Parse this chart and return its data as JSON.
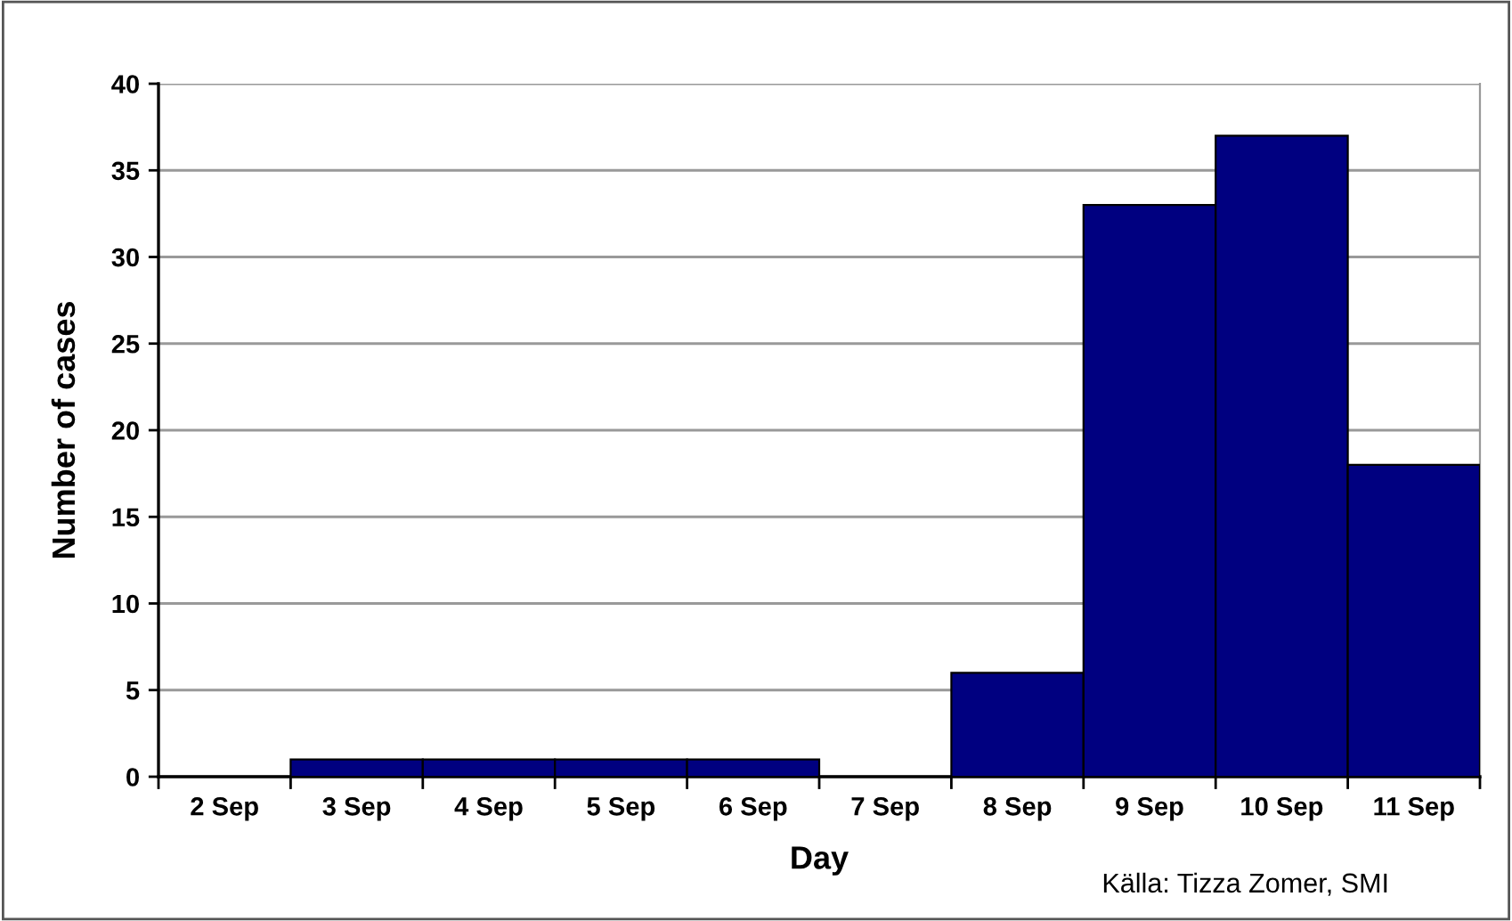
{
  "chart_data": {
    "type": "bar",
    "xlabel": "Day",
    "ylabel": "Number of cases",
    "categories": [
      "2 Sep",
      "3 Sep",
      "4 Sep",
      "5 Sep",
      "6 Sep",
      "7 Sep",
      "8 Sep",
      "9 Sep",
      "10 Sep",
      "11 Sep"
    ],
    "values": [
      0,
      1,
      1,
      1,
      1,
      0,
      6,
      33,
      37,
      18
    ],
    "color": "#000080",
    "ylim": [
      0,
      40
    ],
    "yticks": [
      0,
      5,
      10,
      15,
      20,
      25,
      30,
      35,
      40
    ],
    "grid": "y",
    "annotations": [
      "Källa: Tizza Zomer, SMI"
    ]
  }
}
